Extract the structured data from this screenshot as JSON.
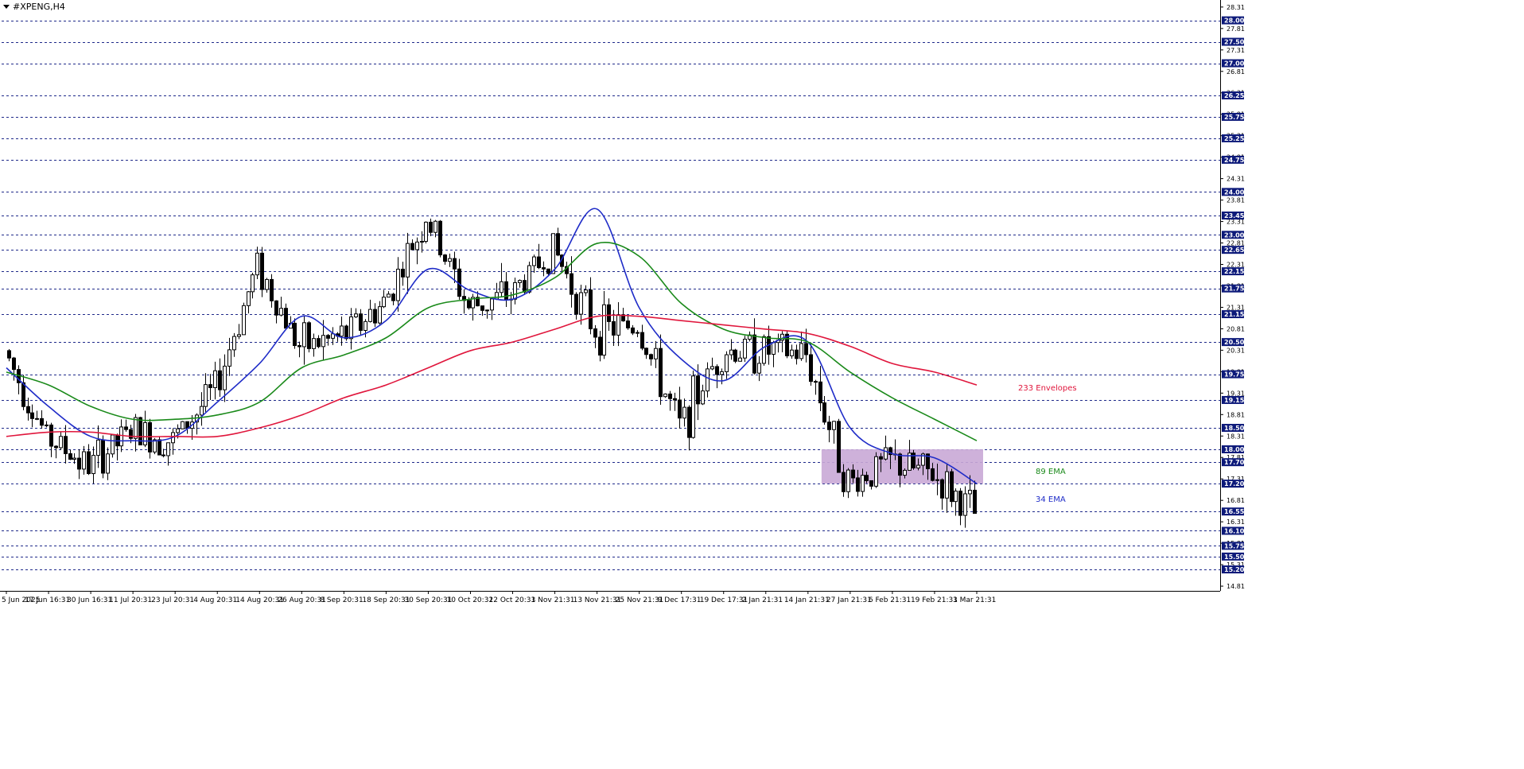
{
  "symbol_title": "#XPENG,H4",
  "colors": {
    "background": "#ffffff",
    "grid": "#1f2a8a",
    "candle": "#000000",
    "ema34": "#1f2cc8",
    "ema89": "#1a8a1a",
    "envelope": "#e0163c",
    "zone_fill": "#c9a9d6",
    "price_box": "#0d1a7a",
    "price_box_text": "#ffffff"
  },
  "chart_data": {
    "type": "candlestick",
    "title": "#XPENG,H4",
    "y_axis": {
      "min": 14.7,
      "max": 28.4,
      "tick_labels": [
        "28.31",
        "27.81",
        "27.31",
        "26.81",
        "26.31",
        "25.81",
        "25.31",
        "24.81",
        "24.31",
        "23.81",
        "23.31",
        "22.81",
        "22.31",
        "21.81",
        "21.31",
        "20.81",
        "20.31",
        "19.81",
        "19.31",
        "18.81",
        "18.31",
        "17.81",
        "17.31",
        "16.81",
        "16.31",
        "15.81",
        "15.31",
        "14.81"
      ],
      "level_lines": [
        28.0,
        27.5,
        27.0,
        26.25,
        25.75,
        25.25,
        24.75,
        24.0,
        23.45,
        23.0,
        22.65,
        22.15,
        21.75,
        21.15,
        20.5,
        19.75,
        19.15,
        18.5,
        18.0,
        17.7,
        17.2,
        16.55,
        16.1,
        15.75,
        15.5,
        15.2
      ],
      "level_labels": [
        "28.00",
        "27.50",
        "27.00",
        "26.25",
        "25.75",
        "25.25",
        "24.75",
        "24.00",
        "23.45",
        "23.00",
        "22.65",
        "22.15",
        "21.75",
        "21.15",
        "20.50",
        "19.75",
        "19.15",
        "18.50",
        "18.00",
        "17.70",
        "17.20",
        "16.55",
        "16.10",
        "15.75",
        "15.50",
        "15.20"
      ]
    },
    "x_axis": {
      "tick_labels": [
        "5 Jun 2025",
        "17 Jun 16:31",
        "30 Jun 16:31",
        "11 Jul 20:31",
        "23 Jul 20:31",
        "4 Aug 20:31",
        "14 Aug 20:31",
        "26 Aug 20:31",
        "8 Sep 20:31",
        "18 Sep 20:31",
        "30 Sep 20:31",
        "10 Oct 20:31",
        "22 Oct 20:31",
        "3 Nov 21:31",
        "13 Nov 21:31",
        "25 Nov 21:31",
        "9 Dec 17:31",
        "19 Dec 17:31",
        "2 Jan 21:31",
        "14 Jan 21:31",
        "27 Jan 21:31",
        "6 Feb 21:31",
        "19 Feb 21:31",
        "3 Mar 21:31"
      ]
    },
    "price_path": [
      [
        "5 Jun 2025",
        20.3
      ],
      [
        "17 Jun 16:31",
        18.3
      ],
      [
        "30 Jun 16:31",
        17.6
      ],
      [
        "11 Jul 20:31",
        18.4
      ],
      [
        "23 Jul 20:31",
        18.2
      ],
      [
        "4 Aug 20:31",
        19.4
      ],
      [
        "14 Aug 20:31",
        22.3
      ],
      [
        "26 Aug 20:31",
        20.4
      ],
      [
        "8 Sep 20:31",
        20.6
      ],
      [
        "18 Sep 20:31",
        21.4
      ],
      [
        "30 Sep 20:31",
        23.4
      ],
      [
        "10 Oct 20:31",
        21.3
      ],
      [
        "22 Oct 20:31",
        21.6
      ],
      [
        "3 Nov 21:31",
        22.7
      ],
      [
        "13 Nov 21:31",
        20.8
      ],
      [
        "25 Nov 21:31",
        20.9
      ],
      [
        "9 Dec 17:31",
        18.5
      ],
      [
        "19 Dec 17:31",
        20.3
      ],
      [
        "2 Jan 21:31",
        20.3
      ],
      [
        "14 Jan 21:31",
        20.2
      ],
      [
        "27 Jan 21:31",
        17.2
      ],
      [
        "6 Feb 21:31",
        17.7
      ],
      [
        "19 Feb 21:31",
        17.4
      ],
      [
        "3 Mar 21:31",
        16.5
      ]
    ],
    "series": [
      {
        "name": "34 EMA",
        "color": "#1f2cc8",
        "values": [
          19.9,
          19.0,
          18.3,
          18.2,
          18.3,
          19.1,
          20.0,
          21.1,
          20.6,
          21.0,
          22.2,
          21.7,
          21.5,
          22.2,
          23.6,
          21.3,
          20.1,
          19.6,
          20.4,
          20.5,
          18.5,
          17.9,
          17.8,
          17.2
        ]
      },
      {
        "name": "89 EMA",
        "color": "#1a8a1a",
        "values": [
          19.8,
          19.5,
          19.0,
          18.7,
          18.7,
          18.8,
          19.1,
          19.9,
          20.2,
          20.6,
          21.3,
          21.5,
          21.6,
          22.0,
          22.8,
          22.5,
          21.4,
          20.8,
          20.6,
          20.5,
          19.8,
          19.2,
          18.7,
          18.2
        ]
      },
      {
        "name": "233 Envelopes",
        "color": "#e0163c",
        "values": [
          18.3,
          18.4,
          18.4,
          18.3,
          18.3,
          18.3,
          18.5,
          18.8,
          19.2,
          19.5,
          19.9,
          20.3,
          20.5,
          20.8,
          21.1,
          21.1,
          21.0,
          20.9,
          20.8,
          20.7,
          20.4,
          20.0,
          19.8,
          19.5
        ]
      }
    ],
    "zone": {
      "y_from": 17.2,
      "y_to": 18.0,
      "x_from": "27 Jan 21:31",
      "x_to": "3 Mar 21:31"
    },
    "annotations": [
      {
        "text": "233 Envelopes",
        "y": 19.45,
        "color": "#e0163c"
      },
      {
        "text": "89 EMA",
        "y": 17.5,
        "color": "#1a8a1a"
      },
      {
        "text": "34 EMA",
        "y": 16.85,
        "color": "#1f2cc8"
      }
    ],
    "grid": true,
    "legend": "none"
  }
}
